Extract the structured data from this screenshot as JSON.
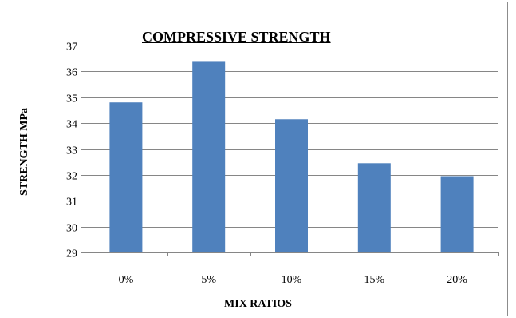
{
  "chart_data": {
    "type": "bar",
    "title": "COMPRESSIVE STRENGTH",
    "xlabel": "MIX RATIOS",
    "ylabel": "STRENGTH MPa",
    "categories": [
      "0%",
      "5%",
      "10%",
      "15%",
      "20%"
    ],
    "values": [
      34.8,
      36.4,
      34.15,
      32.45,
      31.95
    ],
    "ylim": [
      29,
      37
    ],
    "yticks": [
      29,
      30,
      31,
      32,
      33,
      34,
      35,
      36,
      37
    ],
    "grid": true,
    "bar_color": "#4f81bd",
    "grid_color": "#868686"
  }
}
